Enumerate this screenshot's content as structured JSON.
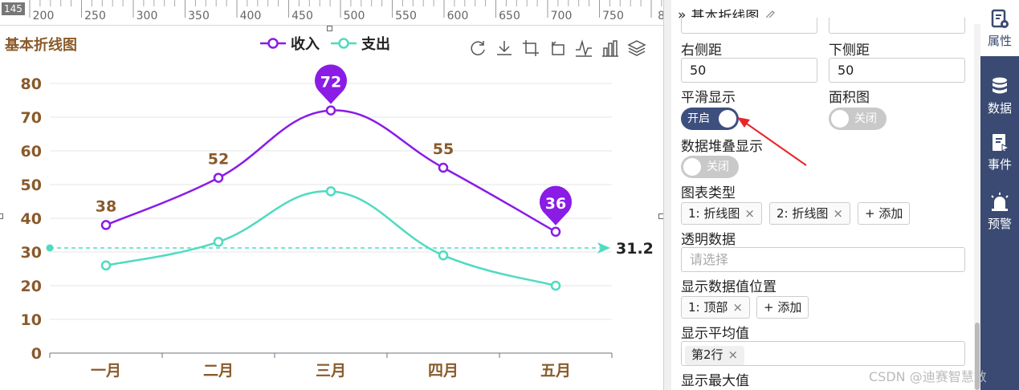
{
  "ruler": {
    "origin_label": "145",
    "ticks": [
      "200",
      "250",
      "300",
      "350",
      "400",
      "450",
      "500",
      "550",
      "600",
      "650",
      "700",
      "750",
      "80"
    ]
  },
  "chart": {
    "title": "基本折线图",
    "toolbox_icons": [
      "refresh-icon",
      "download-icon",
      "crop-icon",
      "crop-back-icon",
      "line-toggle-icon",
      "bar-toggle-icon",
      "stack-toggle-icon"
    ]
  },
  "chart_data": {
    "type": "line",
    "smooth": true,
    "categories": [
      "一月",
      "二月",
      "三月",
      "四月",
      "五月"
    ],
    "series": [
      {
        "name": "收入",
        "values": [
          38,
          52,
          72,
          55,
          36
        ],
        "color": "#8a1ce6"
      },
      {
        "name": "支出",
        "values": [
          26,
          33,
          48,
          29,
          20
        ],
        "color": "#4fdbc0"
      }
    ],
    "ylim": [
      0,
      80
    ],
    "yticks": [
      "0",
      "10",
      "20",
      "30",
      "40",
      "50",
      "60",
      "70",
      "80"
    ],
    "data_labels": {
      "收入": [
        "38",
        "52",
        "72",
        "55",
        "36"
      ]
    },
    "markers": {
      "max": {
        "category": "三月",
        "value": "72"
      },
      "min": {
        "category": "五月",
        "value": "36"
      }
    },
    "average_line": {
      "series": "支出",
      "value": 31.2,
      "label": "31.2"
    },
    "legend": "top-center",
    "grid": true,
    "label_color": "#8a5a2b"
  },
  "panel": {
    "header_title": "基本折线图",
    "right_margin_label": "右侧距",
    "right_margin_value": "50",
    "bottom_margin_label": "下侧距",
    "bottom_margin_value": "50",
    "smooth_label": "平滑显示",
    "smooth_toggle": "开启",
    "area_label": "面积图",
    "area_toggle": "关闭",
    "stack_label": "数据堆叠显示",
    "stack_toggle": "关闭",
    "chart_type_label": "图表类型",
    "chart_type_tags": [
      "1: 折线图",
      "2: 折线图"
    ],
    "add_label": "+ 添加",
    "transparent_label": "透明数据",
    "transparent_placeholder": "请选择",
    "value_position_label": "显示数据值位置",
    "value_position_tag": "1: 顶部",
    "average_label": "显示平均值",
    "average_tag": "第2行",
    "max_label": "显示最大值"
  },
  "sidenav": {
    "items": [
      {
        "label": "属性",
        "icon": "properties-icon",
        "active": true
      },
      {
        "label": "数据",
        "icon": "database-icon",
        "active": false
      },
      {
        "label": "事件",
        "icon": "event-icon",
        "active": false
      },
      {
        "label": "预警",
        "icon": "alarm-icon",
        "active": false
      }
    ]
  },
  "watermark": "CSDN @迪赛智慧数"
}
